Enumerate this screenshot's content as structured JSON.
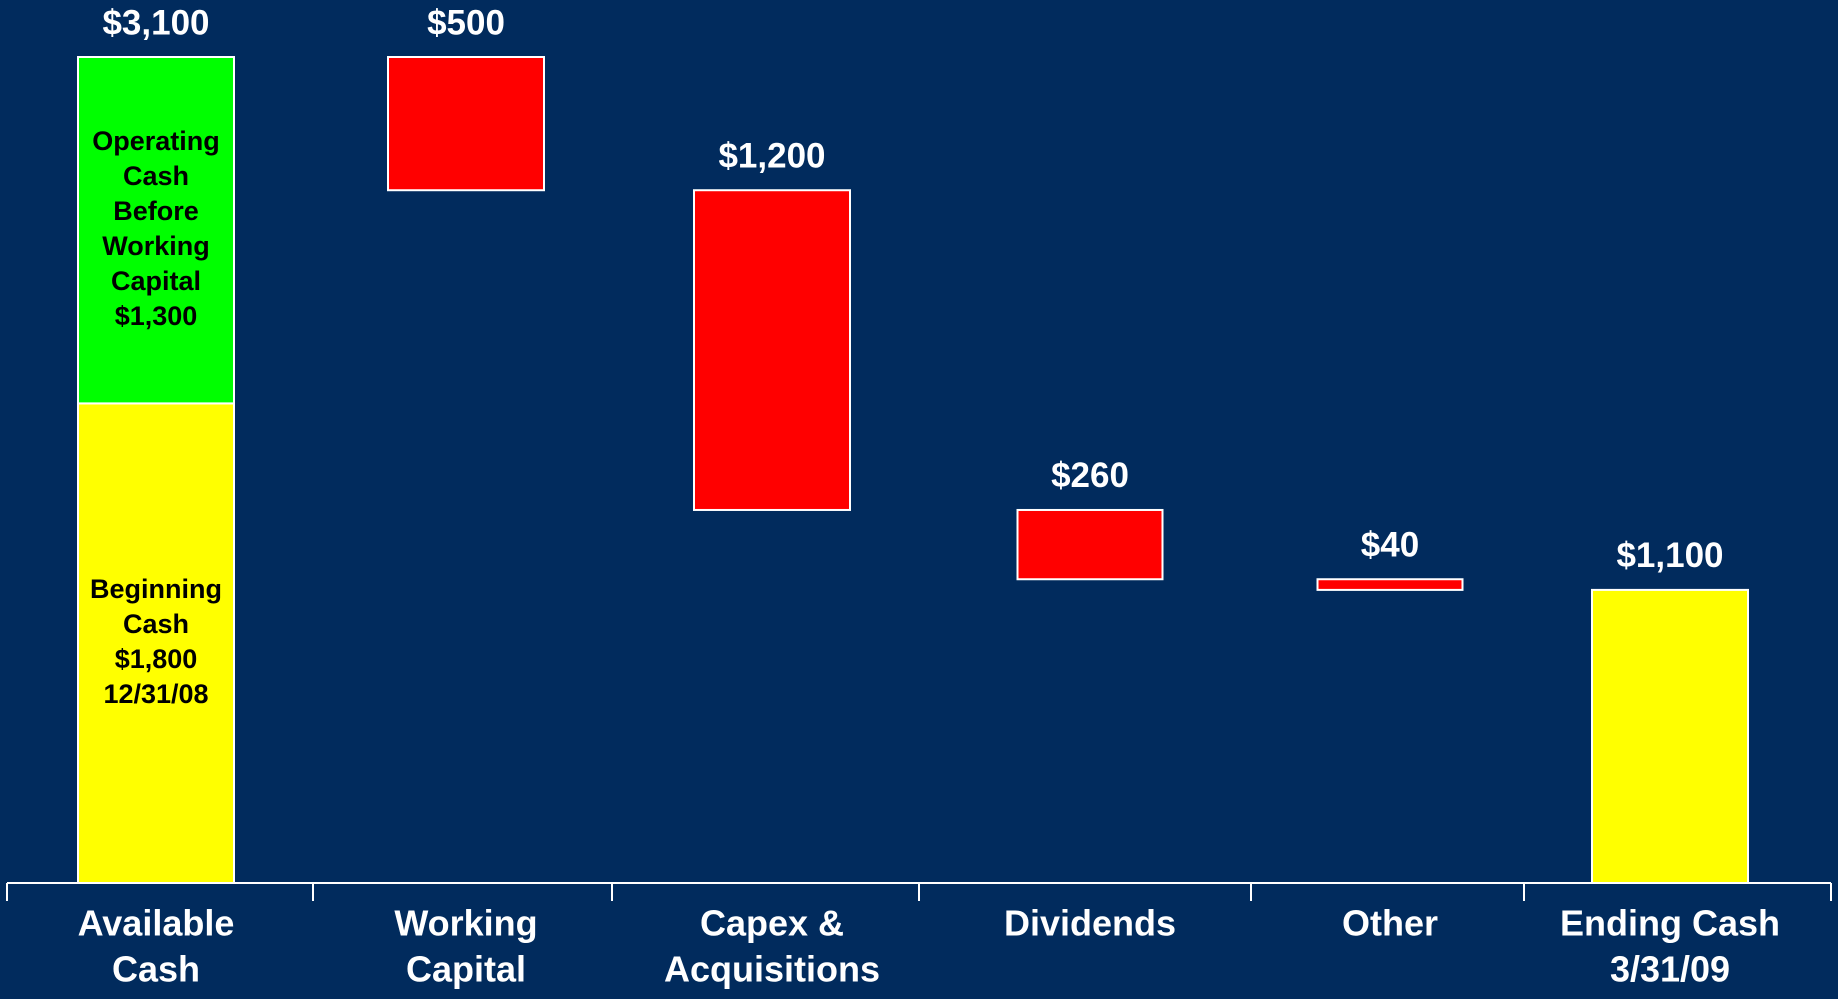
{
  "chart_data": {
    "type": "waterfall",
    "bars": [
      {
        "category": [
          "Available",
          "Cash"
        ],
        "total": 3100,
        "total_label": "$3,100",
        "segments": [
          {
            "lines": [
              "Beginning",
              "Cash"
            ],
            "value": 1800,
            "value_label": "$1,800",
            "note": "12/31/08",
            "color": "#ffff00"
          },
          {
            "lines": [
              "Operating",
              "Cash",
              "Before",
              "Working",
              "Capital"
            ],
            "value": 1300,
            "value_label": "$1,300",
            "color": "#00ff00"
          }
        ]
      },
      {
        "category": [
          "Working",
          "Capital"
        ],
        "value": 500,
        "value_label": "$500",
        "color": "#ff0000",
        "direction": "down"
      },
      {
        "category": [
          "Capex &",
          "Acquisitions"
        ],
        "value": 1200,
        "value_label": "$1,200",
        "color": "#ff0000",
        "direction": "down"
      },
      {
        "category": [
          "Dividends"
        ],
        "value": 260,
        "value_label": "$260",
        "color": "#ff0000",
        "direction": "down"
      },
      {
        "category": [
          "Other"
        ],
        "value": 40,
        "value_label": "$40",
        "color": "#ff0000",
        "direction": "down"
      },
      {
        "category": [
          "Ending Cash",
          "3/31/09"
        ],
        "value": 1100,
        "value_label": "$1,100",
        "color": "#ffff00",
        "direction": "total"
      }
    ]
  }
}
